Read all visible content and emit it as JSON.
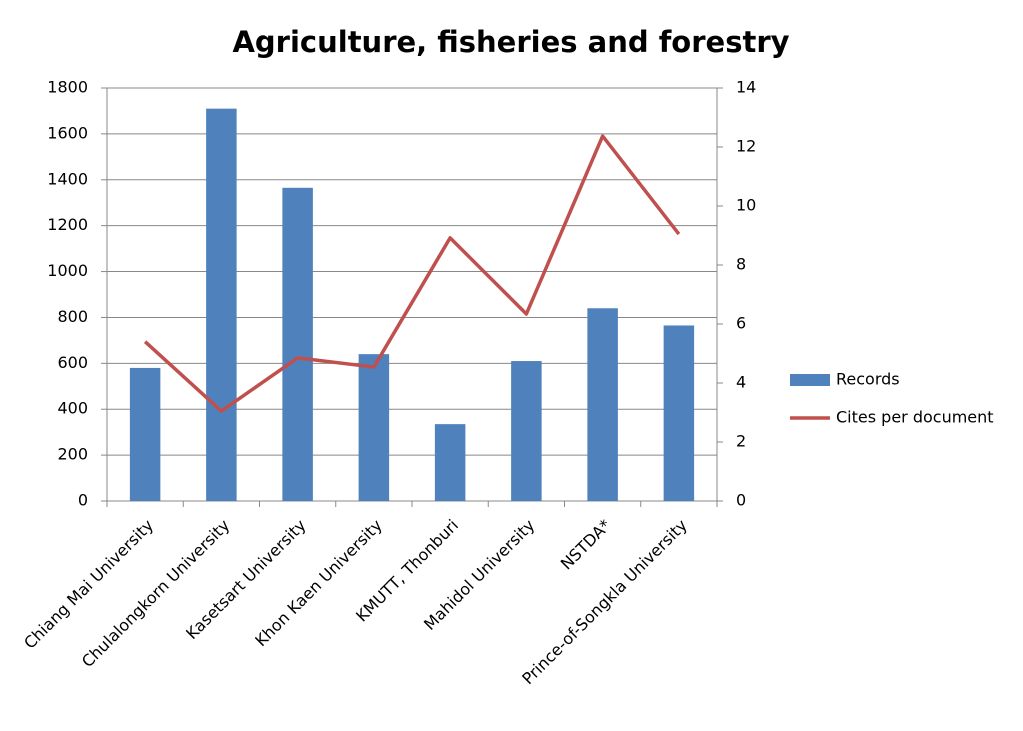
{
  "chart_data": {
    "type": "bar",
    "title": "Agriculture, fisheries and forestry",
    "categories": [
      "Chiang Mai University",
      "Chulalongkorn University",
      "Kasetsart University",
      "Khon Kaen University",
      "KMUTT, Thonburi",
      "Mahidol University",
      "NSTDA*",
      "Prince-of-Songkla University"
    ],
    "series": [
      {
        "name": "Records",
        "type": "bar",
        "color": "#4f81bd",
        "values": [
          580,
          1710,
          1365,
          640,
          335,
          610,
          840,
          765
        ]
      },
      {
        "name": "Cites per document",
        "type": "line",
        "axis": "y2",
        "color": "#c0504d",
        "values": [
          5.4,
          3.05,
          4.85,
          4.54,
          8.92,
          6.34,
          12.37,
          9.05
        ]
      }
    ],
    "ylim": [
      0,
      1800
    ],
    "yticks": [
      0,
      200,
      400,
      600,
      800,
      1000,
      1200,
      1400,
      1600,
      1800
    ],
    "y2lim": [
      0,
      14
    ],
    "y2ticks": [
      0,
      2,
      4,
      6,
      8,
      10,
      12,
      14
    ],
    "grid": true,
    "legend": "right"
  }
}
